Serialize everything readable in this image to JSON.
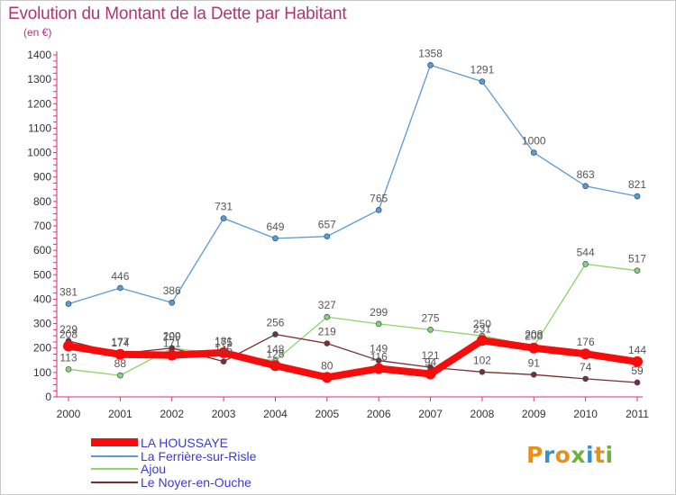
{
  "header": {
    "title": "Evolution du Montant de la Dette par Habitant",
    "unit": "(en €)"
  },
  "logo": {
    "text": "Proxiti",
    "colors": [
      "#e8901e",
      "#3a8fd0",
      "#e8901e",
      "#6cb33e",
      "#3a8fd0",
      "#e8901e",
      "#6cb33e"
    ]
  },
  "chart_data": {
    "type": "line",
    "title": "Evolution du Montant de la Dette par Habitant",
    "ylabel": "(en €)",
    "xlabel": "",
    "x": [
      "2000",
      "2001",
      "2002",
      "2003",
      "2004",
      "2005",
      "2006",
      "2007",
      "2008",
      "2009",
      "2010",
      "2011"
    ],
    "ylim": [
      0,
      1400
    ],
    "yticks": [
      0,
      100,
      200,
      300,
      400,
      500,
      600,
      700,
      800,
      900,
      1000,
      1100,
      1200,
      1300,
      1400
    ],
    "grid": false,
    "legend": "bottom-left",
    "series": [
      {
        "name": "La Ferrière-sur-Risle",
        "color": "#5a9bd5",
        "values": [
          381,
          446,
          386,
          731,
          649,
          657,
          765,
          1358,
          1291,
          1000,
          863,
          821
        ],
        "labels": [
          "381",
          "446",
          "386",
          "731",
          "649",
          "657",
          "765",
          "1358",
          "1291",
          "1000",
          "863",
          "821"
        ]
      },
      {
        "name": "Ajou",
        "color": "#8ed36a",
        "values": [
          113,
          88,
          199,
          175,
          148,
          327,
          299,
          275,
          250,
          208,
          544,
          517
        ],
        "labels": [
          "113",
          "88",
          "199",
          "175",
          "148",
          "327",
          "299",
          "275",
          "250",
          "208",
          "544",
          "517"
        ]
      },
      {
        "name": "Le Noyer-en-Ouche",
        "color": "#7a2e2e",
        "values": [
          229,
          177,
          200,
          145,
          256,
          219,
          149,
          121,
          102,
          91,
          74,
          59
        ],
        "labels": [
          "229",
          "177",
          "200",
          "145",
          "256",
          "219",
          "149",
          "121",
          "102",
          "91",
          "74",
          "59"
        ]
      },
      {
        "name": "LA HOUSSAYE",
        "color": "#f50d0d",
        "values": [
          208,
          174,
          171,
          181,
          128,
          80,
          116,
          94,
          231,
          200,
          176,
          144
        ],
        "labels": [
          "208",
          "174",
          "171",
          "181",
          "128",
          "80",
          "116",
          "94",
          "231",
          "200",
          "176",
          "144"
        ]
      }
    ]
  },
  "legend_items": [
    {
      "label": "LA HOUSSAYE",
      "color": "#f50d0d",
      "text_color": "#3a3ad6"
    },
    {
      "label": "La Ferrière-sur-Risle",
      "color": "#5a9bd5",
      "text_color": "#3a3ad6"
    },
    {
      "label": "Ajou",
      "color": "#8ed36a",
      "text_color": "#3a3ad6"
    },
    {
      "label": "Le Noyer-en-Ouche",
      "color": "#7a2e2e",
      "text_color": "#3a3ad6"
    }
  ]
}
